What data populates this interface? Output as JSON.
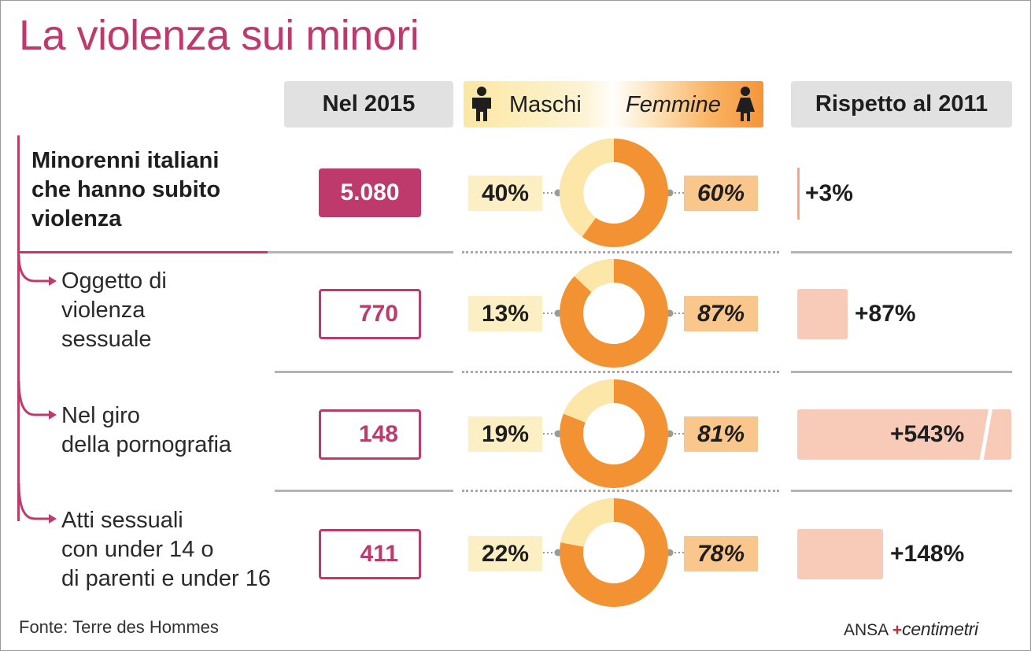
{
  "title": "La violenza sui minori",
  "headers": {
    "count": "Nel 2015",
    "male": "Maschi",
    "female": "Femmine",
    "change": "Rispetto al 2011"
  },
  "icons": [
    "male-person-icon",
    "female-person-icon",
    "branch-arrow-icon"
  ],
  "colors": {
    "accent": "#bf3a6c",
    "male": "#fde7a8",
    "female": "#f29233",
    "delta_bar": "#f8cbb8"
  },
  "rows": [
    {
      "label": "Minorenni italiani\nche hanno subito\nviolenza",
      "count": "5.080",
      "male_pct": "40%",
      "female_pct": "60%",
      "change": "+3%"
    },
    {
      "label": "Oggetto di\nviolenza\nsessuale",
      "count": "770",
      "male_pct": "13%",
      "female_pct": "87%",
      "change": "+87%"
    },
    {
      "label": "Nel giro\ndella pornografia",
      "count": "148",
      "male_pct": "19%",
      "female_pct": "81%",
      "change": "+543%"
    },
    {
      "label": "Atti sessuali\ncon under 14 o\ndi parenti e under 16",
      "count": "411",
      "male_pct": "22%",
      "female_pct": "78%",
      "change": "+148%"
    }
  ],
  "chart_data": {
    "type": "pie",
    "title": "La violenza sui minori",
    "categories": [
      "Minorenni italiani che hanno subito violenza",
      "Oggetto di violenza sessuale",
      "Nel giro della pornografia",
      "Atti sessuali con under 14 o di parenti e under 16"
    ],
    "series": [
      {
        "name": "Nel 2015",
        "values": [
          5080,
          770,
          148,
          411
        ]
      },
      {
        "name": "Maschi (%)",
        "values": [
          40,
          13,
          19,
          22
        ]
      },
      {
        "name": "Femmine (%)",
        "values": [
          60,
          87,
          81,
          78
        ]
      },
      {
        "name": "Rispetto al 2011 (%)",
        "values": [
          3,
          87,
          543,
          148
        ]
      }
    ]
  },
  "footer": {
    "source": "Fonte: Terre des Hommes",
    "brand_agency": "ANSA",
    "brand_mark": "+",
    "brand_name": "centimetri"
  }
}
